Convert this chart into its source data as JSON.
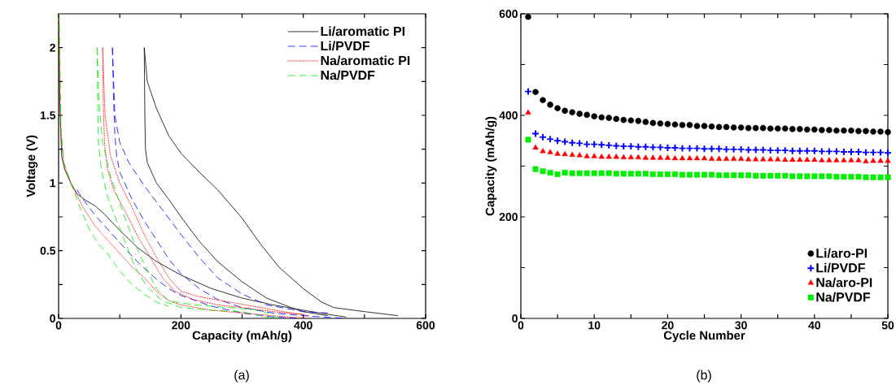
{
  "chart_data": [
    {
      "type": "line",
      "xlabel": "Capacity (mAh/g)",
      "ylabel": "Voltage (V)",
      "annotations": [
        "(a)"
      ],
      "xlim": [
        0,
        600
      ],
      "ylim": [
        0,
        2.25
      ],
      "xticks": [
        0,
        {
          "value": 100,
          "label": null
        },
        200,
        {
          "value": 300,
          "label": null
        },
        400,
        {
          "value": 500,
          "label": null
        },
        600
      ],
      "yticks": [
        0,
        {
          "value": 0.25,
          "label": null
        },
        0.5,
        {
          "value": 0.75,
          "label": null
        },
        1,
        {
          "value": 1.25,
          "label": null
        },
        1.5,
        {
          "value": 1.75,
          "label": null
        },
        2
      ],
      "legend": "top right",
      "series": [
        {
          "name": "Li/aromatic PI",
          "color": "#000000",
          "line_style": "solid",
          "x": [
            0,
            2,
            5,
            10,
            20,
            30,
            45,
            60,
            75,
            100,
            130,
            160,
            200,
            250,
            300,
            350,
            400,
            440,
            470
          ],
          "values": [
            2.25,
            1.6,
            1.2,
            1.1,
            1.0,
            0.92,
            0.87,
            0.83,
            0.77,
            0.65,
            0.52,
            0.42,
            0.32,
            0.22,
            0.15,
            0.1,
            0.06,
            0.03,
            0.01
          ]
        },
        {
          "color": "#000000",
          "line_style": "solid",
          "x": [
            140,
            141,
            142,
            145,
            160,
            180,
            200,
            230,
            260,
            300,
            340,
            380,
            400,
            440
          ],
          "values": [
            2.0,
            1.5,
            1.25,
            1.15,
            1.0,
            0.88,
            0.75,
            0.57,
            0.42,
            0.27,
            0.15,
            0.08,
            0.05,
            0.02
          ]
        },
        {
          "color": "#000000",
          "line_style": "solid",
          "x": [
            140,
            145,
            160,
            180,
            200,
            230,
            260,
            300,
            330,
            360,
            400,
            430,
            450,
            500,
            555
          ],
          "values": [
            2.0,
            1.75,
            1.55,
            1.35,
            1.22,
            1.08,
            0.95,
            0.74,
            0.55,
            0.38,
            0.22,
            0.12,
            0.08,
            0.05,
            0.02
          ]
        },
        {
          "name": "Li/PVDF",
          "color": "#0000ff",
          "line_style": "dashed",
          "x": [
            30,
            40,
            60,
            80,
            100,
            120,
            140,
            160,
            180,
            200,
            250,
            300,
            350,
            400
          ],
          "values": [
            0.95,
            0.88,
            0.76,
            0.66,
            0.56,
            0.46,
            0.37,
            0.29,
            0.22,
            0.17,
            0.09,
            0.04,
            0.01,
            0.0
          ]
        },
        {
          "color": "#0000ff",
          "line_style": "dashed",
          "x": [
            88,
            89,
            90,
            92,
            95,
            100,
            120,
            140,
            160,
            180,
            200,
            230,
            260,
            300,
            350,
            400,
            470
          ],
          "values": [
            2.0,
            1.8,
            1.6,
            1.35,
            1.2,
            1.08,
            0.88,
            0.72,
            0.58,
            0.44,
            0.33,
            0.22,
            0.14,
            0.08,
            0.04,
            0.02,
            0.0
          ]
        },
        {
          "color": "#0000ff",
          "line_style": "dashed",
          "x": [
            88,
            92,
            100,
            115,
            140,
            170,
            200,
            230,
            260,
            300,
            340,
            400,
            440
          ],
          "values": [
            2.0,
            1.5,
            1.3,
            1.15,
            0.98,
            0.8,
            0.62,
            0.45,
            0.3,
            0.18,
            0.1,
            0.05,
            0.04
          ]
        },
        {
          "name": "Na/aromatic PI",
          "color": "#ff0000",
          "line_style": "dotted",
          "x": [
            0,
            3,
            8,
            20,
            40,
            60,
            80,
            100,
            120,
            140,
            160,
            180,
            200,
            250,
            300,
            350,
            405
          ],
          "values": [
            2.25,
            1.4,
            1.15,
            1.0,
            0.82,
            0.68,
            0.58,
            0.48,
            0.38,
            0.3,
            0.2,
            0.13,
            0.1,
            0.06,
            0.04,
            0.02,
            0.0
          ]
        },
        {
          "color": "#ff0000",
          "line_style": "dotted",
          "x": [
            72,
            73,
            75,
            80,
            90,
            110,
            130,
            150,
            170,
            190,
            220,
            260,
            300,
            350,
            400
          ],
          "values": [
            2.0,
            1.6,
            1.3,
            1.1,
            0.95,
            0.78,
            0.6,
            0.45,
            0.3,
            0.2,
            0.14,
            0.1,
            0.08,
            0.05,
            0.03
          ]
        },
        {
          "color": "#ff0000",
          "line_style": "dotted",
          "x": [
            72,
            76,
            85,
            100,
            120,
            140,
            160,
            180,
            200,
            230,
            280,
            330,
            380,
            410
          ],
          "values": [
            2.0,
            1.5,
            1.2,
            1.0,
            0.82,
            0.62,
            0.45,
            0.3,
            0.2,
            0.16,
            0.12,
            0.08,
            0.04,
            0.02
          ]
        },
        {
          "name": "Na/PVDF",
          "color": "#00ee00",
          "line_style": "dashed",
          "x": [
            1,
            4,
            9,
            20,
            35,
            50,
            65,
            80,
            100,
            120,
            140,
            160,
            180
          ],
          "values": [
            2.25,
            1.4,
            1.15,
            1.0,
            0.82,
            0.66,
            0.55,
            0.48,
            0.35,
            0.25,
            0.18,
            0.12,
            0.09
          ]
        },
        {
          "color": "#00ee00",
          "line_style": "dashed",
          "x": [
            63,
            64,
            65,
            70,
            80,
            95,
            110,
            125,
            145,
            170,
            200,
            250,
            300,
            350
          ],
          "values": [
            2.0,
            1.6,
            1.3,
            1.1,
            0.9,
            0.72,
            0.55,
            0.38,
            0.23,
            0.13,
            0.08,
            0.06,
            0.05,
            0.0
          ]
        },
        {
          "color": "#00ee00",
          "line_style": "dashed",
          "x": [
            63,
            66,
            72,
            85,
            100,
            120,
            140,
            160,
            180,
            220,
            280,
            330,
            360
          ],
          "values": [
            2.0,
            1.6,
            1.3,
            1.05,
            0.85,
            0.6,
            0.4,
            0.22,
            0.13,
            0.1,
            0.08,
            0.06,
            0.0
          ]
        }
      ]
    },
    {
      "type": "scatter",
      "xlabel": "Cycle Number",
      "ylabel": "Capacity (mAh/g)",
      "annotations": [
        "(b)"
      ],
      "xlim": [
        0,
        50
      ],
      "ylim": [
        0,
        600
      ],
      "xticks": [
        0,
        {
          "value": 5,
          "label": null
        },
        10,
        {
          "value": 15,
          "label": null
        },
        20,
        {
          "value": 25,
          "label": null
        },
        30,
        {
          "value": 35,
          "label": null
        },
        40,
        {
          "value": 45,
          "label": null
        },
        50
      ],
      "yticks": [
        0,
        {
          "value": 100,
          "label": null
        },
        200,
        {
          "value": 300,
          "label": null
        },
        400,
        {
          "value": 500,
          "label": null
        },
        600
      ],
      "legend": "bottom right",
      "x": [
        1,
        2,
        3,
        4,
        5,
        6,
        7,
        8,
        9,
        10,
        11,
        12,
        13,
        14,
        15,
        16,
        17,
        18,
        19,
        20,
        21,
        22,
        23,
        24,
        25,
        26,
        27,
        28,
        29,
        30,
        31,
        32,
        33,
        34,
        35,
        36,
        37,
        38,
        39,
        40,
        41,
        42,
        43,
        44,
        45,
        46,
        47,
        48,
        49,
        50
      ],
      "series": [
        {
          "name": "Li/aro-PI",
          "color": "#000000",
          "marker": "circle",
          "values": [
            594,
            446,
            430,
            421,
            414,
            409,
            406,
            403,
            401,
            398,
            396,
            395,
            393,
            391,
            390,
            389,
            387,
            385,
            384,
            383,
            382,
            381,
            381,
            379,
            379,
            378,
            377,
            377,
            376,
            376,
            375,
            375,
            375,
            374,
            374,
            374,
            373,
            373,
            372,
            372,
            371,
            371,
            370,
            370,
            370,
            369,
            369,
            368,
            368,
            367
          ]
        },
        {
          "name": "Li/PVDF",
          "color": "#0000ff",
          "marker": "cross",
          "values": [
            447,
            364,
            357,
            353,
            350,
            348,
            346,
            345,
            343,
            343,
            342,
            341,
            340,
            339,
            339,
            338,
            338,
            337,
            337,
            336,
            336,
            335,
            335,
            335,
            334,
            334,
            334,
            333,
            333,
            333,
            332,
            332,
            332,
            331,
            331,
            331,
            330,
            330,
            330,
            330,
            329,
            329,
            329,
            328,
            328,
            328,
            327,
            327,
            327,
            326
          ]
        },
        {
          "name": "Na/aro-PI",
          "color": "#ff0000",
          "marker": "triangle",
          "values": [
            405,
            336,
            329,
            327,
            324,
            323,
            322,
            321,
            319,
            319,
            318,
            318,
            318,
            317,
            317,
            317,
            316,
            316,
            316,
            316,
            315,
            315,
            315,
            315,
            315,
            314,
            314,
            314,
            314,
            314,
            313,
            313,
            313,
            313,
            313,
            312,
            312,
            312,
            312,
            312,
            311,
            311,
            311,
            311,
            311,
            311,
            309,
            310,
            310,
            310
          ]
        },
        {
          "name": "Na/PVDF",
          "color": "#00ee00",
          "marker": "square",
          "values": [
            352,
            294,
            290,
            287,
            284,
            287,
            286,
            286,
            286,
            286,
            286,
            286,
            285,
            285,
            285,
            285,
            285,
            284,
            284,
            284,
            284,
            283,
            283,
            283,
            283,
            283,
            282,
            282,
            282,
            282,
            282,
            281,
            281,
            281,
            281,
            281,
            280,
            280,
            280,
            280,
            280,
            280,
            279,
            279,
            279,
            279,
            278,
            278,
            278,
            278
          ]
        }
      ]
    }
  ]
}
